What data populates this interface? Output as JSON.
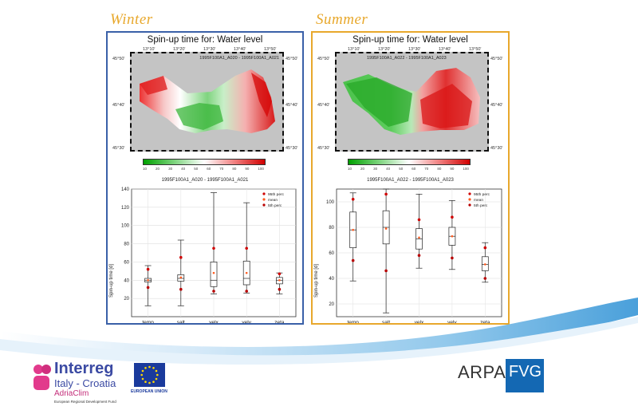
{
  "labels": {
    "winter": "Winter",
    "summer": "Summer"
  },
  "colors": {
    "winter_frame": "#3a60a8",
    "summer_frame": "#e8a82c",
    "season_text": "#e8a82c"
  },
  "panels": [
    {
      "id": "winter",
      "map_title": "Spin-up time for: Water level",
      "map_subtitle": "1995F100A1_A020 - 1995F100A1_A021",
      "lon_ticks": [
        "13°10'",
        "13°20'",
        "13°30'",
        "13°40'",
        "13°50'"
      ],
      "lat_ticks": [
        "45°50'",
        "45°40'",
        "45°30'"
      ],
      "colorbar_ticks": [
        "10",
        "20",
        "30",
        "40",
        "50",
        "60",
        "70",
        "80",
        "90",
        "100"
      ],
      "plot_title": "1995F100A1_A020 - 1995F100A1_A021",
      "legend": [
        "95th perc",
        "mean",
        "5th perc"
      ],
      "chart_data": {
        "type": "box",
        "categories": [
          "temp",
          "salt",
          "velx",
          "vely",
          "zeta"
        ],
        "ylabel": "Spin-up time [d]",
        "ylim": [
          0,
          140
        ],
        "yticks": [
          20,
          40,
          60,
          80,
          100,
          120,
          140
        ],
        "boxes": [
          {
            "name": "temp",
            "whisker_low": 12,
            "q1": 38,
            "median": 40,
            "q3": 42,
            "whisker_high": 56,
            "p5": 32,
            "mean": 40,
            "p95": 52
          },
          {
            "name": "salt",
            "whisker_low": 12,
            "q1": 39,
            "median": 42,
            "q3": 46,
            "whisker_high": 84,
            "p5": 30,
            "mean": 43,
            "p95": 65
          },
          {
            "name": "velx",
            "whisker_low": 25,
            "q1": 33,
            "median": 40,
            "q3": 60,
            "whisker_high": 136,
            "p5": 28,
            "mean": 48,
            "p95": 75
          },
          {
            "name": "vely",
            "whisker_low": 26,
            "q1": 35,
            "median": 42,
            "q3": 61,
            "whisker_high": 125,
            "p5": 28,
            "mean": 48,
            "p95": 75
          },
          {
            "name": "zeta",
            "whisker_low": 25,
            "q1": 36,
            "median": 40,
            "q3": 43,
            "whisker_high": 48,
            "p5": 30,
            "mean": 40,
            "p95": 47
          }
        ]
      }
    },
    {
      "id": "summer",
      "map_title": "Spin-up time for: Water level",
      "map_subtitle": "1995F100A1_A022 - 1995F100A1_A023",
      "lon_ticks": [
        "13°10'",
        "13°20'",
        "13°30'",
        "13°40'",
        "13°50'"
      ],
      "lat_ticks": [
        "45°50'",
        "45°40'",
        "45°30'"
      ],
      "colorbar_ticks": [
        "10",
        "20",
        "30",
        "40",
        "50",
        "60",
        "70",
        "80",
        "90",
        "100"
      ],
      "plot_title": "1995F100A1_A022 - 1995F100A1_A023",
      "legend": [
        "95th perc",
        "mean",
        "5th perc"
      ],
      "chart_data": {
        "type": "box",
        "categories": [
          "temp",
          "salt",
          "velx",
          "vely",
          "zeta"
        ],
        "ylabel": "Spin-up time [d]",
        "ylim": [
          10,
          110
        ],
        "yticks": [
          20,
          40,
          60,
          80,
          100
        ],
        "boxes": [
          {
            "name": "temp",
            "whisker_low": 38,
            "q1": 64,
            "median": 78,
            "q3": 92,
            "whisker_high": 107,
            "p5": 54,
            "mean": 78,
            "p95": 102
          },
          {
            "name": "salt",
            "whisker_low": 13,
            "q1": 67,
            "median": 80,
            "q3": 93,
            "whisker_high": 110,
            "p5": 46,
            "mean": 79,
            "p95": 106
          },
          {
            "name": "velx",
            "whisker_low": 48,
            "q1": 63,
            "median": 71,
            "q3": 79,
            "whisker_high": 106,
            "p5": 58,
            "mean": 72,
            "p95": 86
          },
          {
            "name": "vely",
            "whisker_low": 47,
            "q1": 66,
            "median": 73,
            "q3": 80,
            "whisker_high": 101,
            "p5": 56,
            "mean": 73,
            "p95": 88
          },
          {
            "name": "zeta",
            "whisker_low": 37,
            "q1": 46,
            "median": 51,
            "q3": 57,
            "whisker_high": 68,
            "p5": 40,
            "mean": 51,
            "p95": 64
          }
        ]
      }
    }
  ],
  "footer": {
    "interreg_brand": "Interreg",
    "interreg_program": "Italy - Croatia",
    "interreg_project": "AdriaClim",
    "interreg_fund": "European Regional Development Fund",
    "eu_label": "EUROPEAN UNION",
    "arpa_left": "ARPA",
    "arpa_right": "FVG"
  }
}
